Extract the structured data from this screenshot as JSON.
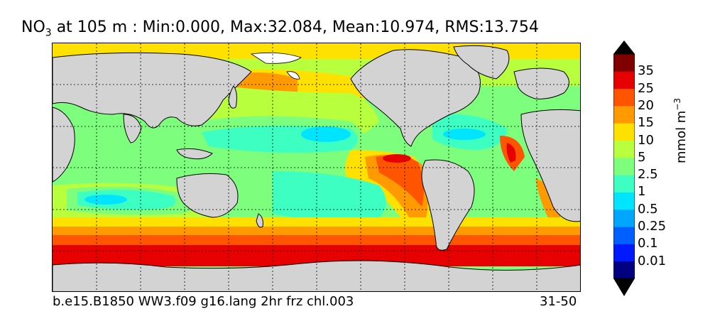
{
  "title": {
    "variable": "NO",
    "subscript": "3",
    "rest": " at 105 m : Min:0.000, Max:32.084, Mean:10.974, RMS:13.754"
  },
  "footer": {
    "case": "b.e15.B1850 WW3.f09 g16.lang 2hr frz chl.003",
    "years": "31-50"
  },
  "colorbar": {
    "units_base": "mmol m",
    "units_exp": "−3",
    "tick_labels": [
      "35",
      "25",
      "20",
      "15",
      "10",
      "5",
      "2.5",
      "1",
      "0.5",
      "0.25",
      "0.1",
      "0.01"
    ],
    "colors": [
      "#000080",
      "#0019ff",
      "#0060ff",
      "#00a6ff",
      "#00e5ff",
      "#3dffc2",
      "#7dff7d",
      "#b8ff3d",
      "#ffe100",
      "#ff9a00",
      "#ff5500",
      "#e60000",
      "#800000"
    ]
  },
  "map": {
    "land_color": "#d3d3d3",
    "ice_color": "#ffffff"
  }
}
